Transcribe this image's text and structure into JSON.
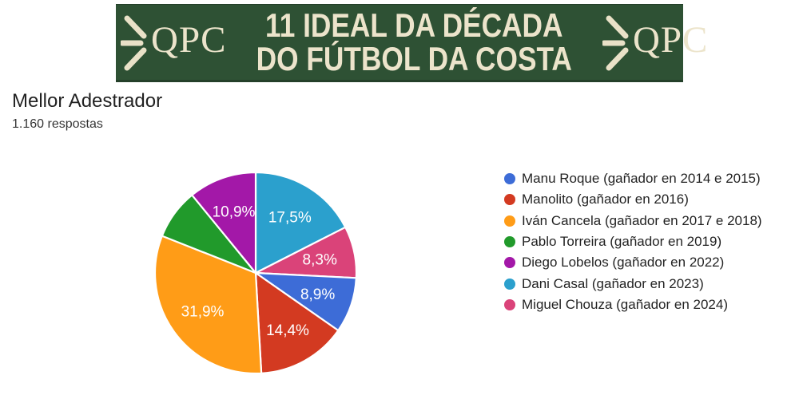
{
  "banner": {
    "title_line1": "11 IDEAL DA DÉCADA",
    "title_line2": "DO FÚTBOL DA COSTA",
    "logo_text": "QPC",
    "bg_color": "#2e5134",
    "text_color": "#ece4cb"
  },
  "header": {
    "title": "Mellor Adestrador",
    "subtitle": "1.160 respostas"
  },
  "chart_data": {
    "type": "pie",
    "title": "Mellor Adestrador",
    "responses_text": "1.160 respostas",
    "start_angle_deg": 0,
    "direction": "clockwise",
    "legend_position": "right",
    "slices": [
      {
        "name": "Dani Casal (gañador en 2023)",
        "value": 17.5,
        "label": "17,5%",
        "label_shown": true,
        "color": "#2ba0cd"
      },
      {
        "name": "Miguel Chouza (gañador en 2024)",
        "value": 8.3,
        "label": "8,3%",
        "label_shown": true,
        "color": "#da4379"
      },
      {
        "name": "Manu Roque (gañador en 2014 e 2015)",
        "value": 8.9,
        "label": "8,9%",
        "label_shown": true,
        "color": "#3d6cd7"
      },
      {
        "name": "Manolito (gañador en 2016)",
        "value": 14.4,
        "label": "14,4%",
        "label_shown": true,
        "color": "#d33a21"
      },
      {
        "name": "Iván Cancela (gañador en 2017 e 2018)",
        "value": 31.9,
        "label": "31,9%",
        "label_shown": true,
        "color": "#ff9c17"
      },
      {
        "name": "Pablo Torreira (gañador en 2019)",
        "value": 8.1,
        "label": "",
        "label_shown": false,
        "color": "#219a2b"
      },
      {
        "name": "Diego Lobelos (gañador en 2022)",
        "value": 10.9,
        "label": "10,9%",
        "label_shown": true,
        "color": "#a318a8"
      }
    ],
    "legend": [
      {
        "label": "Manu Roque (gañador en 2014 e 2015)",
        "color": "#3d6cd7"
      },
      {
        "label": "Manolito (gañador en 2016)",
        "color": "#d33a21"
      },
      {
        "label": "Iván Cancela (gañador en 2017 e 2018)",
        "color": "#ff9c17"
      },
      {
        "label": "Pablo Torreira (gañador en 2019)",
        "color": "#219a2b"
      },
      {
        "label": "Diego Lobelos (gañador en 2022)",
        "color": "#a318a8"
      },
      {
        "label": "Dani Casal (gañador en 2023)",
        "color": "#2ba0cd"
      },
      {
        "label": "Miguel Chouza (gañador en 2024)",
        "color": "#da4379"
      }
    ]
  }
}
